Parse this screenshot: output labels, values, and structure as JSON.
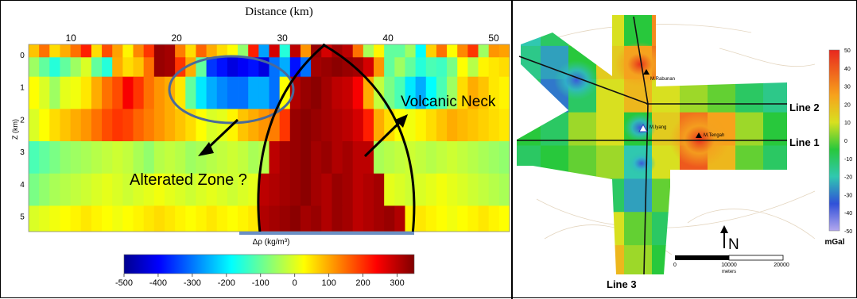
{
  "chart_data": [
    {
      "type": "heatmap",
      "title": "Distance (km)",
      "xlabel": "Distance (km)",
      "ylabel": "Z (km)",
      "x_ticks": [
        "10",
        "20",
        "30",
        "40",
        "50"
      ],
      "y_ticks": [
        "0",
        "1",
        "2",
        "3",
        "4",
        "5"
      ],
      "xlim": [
        6,
        51.5
      ],
      "ylim": [
        0,
        5.8
      ],
      "colorbar_label": "Δρ (kg/m³)",
      "colorbar_ticks": [
        "-500",
        "-400",
        "-300",
        "-200",
        "-100",
        "0",
        "100",
        "200",
        "300"
      ],
      "colorbar_range": [
        -500,
        350
      ],
      "annotations": [
        "Alterated Zone ?",
        "Volcanic Neck"
      ],
      "rows": [
        {
          "z": [
            0,
            0.4
          ],
          "values": [
            80,
            150,
            60,
            100,
            150,
            220,
            60,
            180,
            110,
            40,
            130,
            200,
            330,
            320,
            140,
            60,
            160,
            100,
            60,
            30,
            -60,
            220,
            -260,
            280,
            -150,
            300,
            120,
            330,
            280,
            320,
            300,
            150,
            -40,
            40,
            -100,
            -100,
            -50,
            -180,
            70,
            150,
            30,
            130,
            200,
            -50,
            120,
            110
          ]
        },
        {
          "z": [
            0.4,
            1.0
          ],
          "values": [
            -50,
            -100,
            -150,
            -100,
            -50,
            0,
            -100,
            -150,
            100,
            60,
            80,
            150,
            330,
            320,
            200,
            100,
            -100,
            -350,
            -380,
            -420,
            -400,
            -380,
            -420,
            -300,
            -250,
            -380,
            -300,
            320,
            330,
            340,
            330,
            320,
            280,
            120,
            -100,
            -50,
            -100,
            -150,
            -120,
            -130,
            -80,
            30,
            -30,
            40,
            50,
            60
          ]
        },
        {
          "z": [
            1.0,
            2.0
          ],
          "values": [
            30,
            0,
            -50,
            10,
            20,
            50,
            100,
            150,
            180,
            250,
            200,
            150,
            120,
            100,
            50,
            -100,
            -200,
            -250,
            -280,
            -300,
            -300,
            -250,
            -250,
            -300,
            30,
            310,
            330,
            340,
            320,
            300,
            290,
            250,
            100,
            -20,
            -80,
            -120,
            -200,
            -250,
            -180,
            -120,
            -50,
            60,
            100,
            80,
            50,
            40
          ]
        },
        {
          "z": [
            2.0,
            3.0
          ],
          "values": [
            0,
            30,
            60,
            80,
            100,
            120,
            150,
            180,
            200,
            190,
            160,
            140,
            120,
            100,
            80,
            60,
            30,
            0,
            10,
            40,
            80,
            100,
            120,
            140,
            200,
            330,
            340,
            330,
            320,
            310,
            300,
            280,
            220,
            100,
            60,
            30,
            20,
            40,
            60,
            80,
            100,
            90,
            80,
            70,
            60,
            50
          ]
        },
        {
          "z": [
            3.0,
            4.0
          ],
          "values": [
            -120,
            -100,
            -80,
            -60,
            -50,
            -40,
            -30,
            -20,
            -10,
            -20,
            -40,
            -60,
            -30,
            -20,
            -30,
            -50,
            -40,
            -30,
            -20,
            -10,
            -20,
            -40,
            -30,
            300,
            320,
            330,
            340,
            320,
            330,
            310,
            320,
            300,
            300,
            -40,
            -30,
            -20,
            -10,
            -20,
            -30,
            -20,
            -10,
            -20,
            -30,
            -40,
            -50,
            -60
          ]
        },
        {
          "z": [
            4.0,
            5.0
          ],
          "values": [
            -80,
            -60,
            -40,
            -30,
            -20,
            -10,
            0,
            10,
            0,
            -10,
            0,
            10,
            20,
            10,
            0,
            -10,
            0,
            10,
            0,
            -10,
            0,
            10,
            300,
            310,
            320,
            330,
            340,
            320,
            310,
            330,
            320,
            300,
            310,
            320,
            10,
            0,
            -10,
            0,
            10,
            20,
            10,
            0,
            -10,
            -20,
            -30,
            -40
          ]
        },
        {
          "z": [
            5.0,
            5.8
          ],
          "values": [
            0,
            10,
            20,
            30,
            40,
            50,
            40,
            30,
            20,
            30,
            40,
            50,
            60,
            50,
            40,
            30,
            40,
            50,
            40,
            30,
            40,
            50,
            310,
            320,
            330,
            340,
            320,
            330,
            310,
            330,
            320,
            300,
            310,
            320,
            330,
            310,
            40,
            50,
            40,
            30,
            20,
            30,
            40,
            50,
            40,
            30
          ]
        }
      ]
    },
    {
      "type": "heatmap",
      "colorbar_label": "mGal",
      "colorbar_ticks": [
        "50",
        "40",
        "30",
        "20",
        "10",
        "0",
        "-10",
        "-20",
        "-30",
        "-40",
        "-50"
      ],
      "colorbar_range": [
        -50,
        50
      ],
      "scale_bar_ticks": [
        "0",
        "10000",
        "20000"
      ],
      "scale_bar_unit": "meters",
      "north_label": "N",
      "lines": [
        "Line 1",
        "Line 2",
        "Line 3"
      ],
      "stations": [
        "M.Rabunan",
        "M.Iyang",
        "M.Tengah"
      ],
      "grid_cols": 10,
      "grid_rows": 8,
      "grid_values": [
        [
          -20,
          -10,
          0,
          10,
          -5,
          30,
          20,
          5,
          0,
          -5
        ],
        [
          -15,
          -25,
          -5,
          15,
          25,
          35,
          15,
          5,
          -5,
          -10
        ],
        [
          -10,
          -30,
          -10,
          10,
          20,
          10,
          5,
          0,
          -10,
          -15
        ],
        [
          -5,
          -10,
          5,
          10,
          -5,
          15,
          35,
          25,
          5,
          -5
        ],
        [
          -10,
          -5,
          0,
          5,
          -20,
          10,
          40,
          20,
          0,
          -10
        ],
        [
          -15,
          -10,
          -5,
          -10,
          -25,
          0,
          10,
          5,
          -5,
          -15
        ],
        [
          -10,
          -5,
          5,
          10,
          0,
          -10,
          -5,
          0,
          -5,
          -10
        ],
        [
          -5,
          0,
          10,
          20,
          5,
          -5,
          0,
          5,
          0,
          -5
        ]
      ]
    }
  ]
}
